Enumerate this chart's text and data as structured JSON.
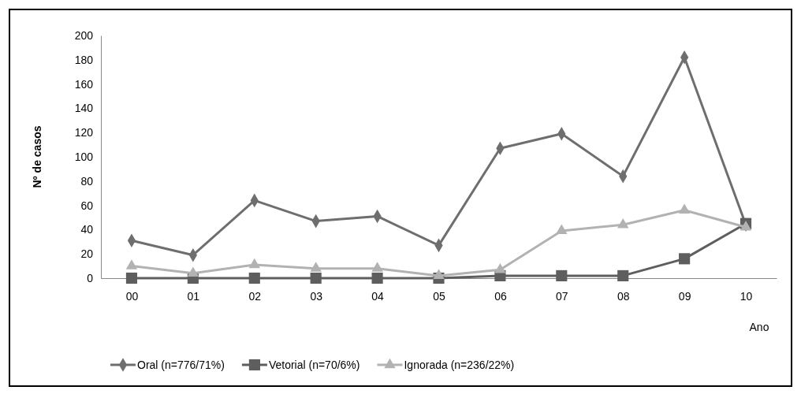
{
  "chart_data": {
    "type": "line",
    "xlabel": "Ano",
    "ylabel": "Nº de casos",
    "categories": [
      "00",
      "01",
      "02",
      "03",
      "04",
      "05",
      "06",
      "07",
      "08",
      "09",
      "10"
    ],
    "series": [
      {
        "name": "Oral (n=776/71%)",
        "color": "#6e6e6e",
        "marker": "diamond",
        "values": [
          31,
          19,
          64,
          47,
          51,
          27,
          107,
          119,
          84,
          182,
          44
        ]
      },
      {
        "name": "Vetorial (n=70/6%)",
        "color": "#5e5e5e",
        "marker": "square",
        "values": [
          0,
          0,
          0,
          0,
          0,
          0,
          2,
          2,
          2,
          16,
          45
        ]
      },
      {
        "name": "Ignorada (n=236/22%)",
        "color": "#b2b2b2",
        "marker": "triangle",
        "values": [
          10,
          4,
          11,
          8,
          8,
          2,
          7,
          39,
          44,
          56,
          42
        ]
      }
    ],
    "ylim": [
      0,
      200
    ],
    "yticks": [
      0,
      20,
      40,
      60,
      80,
      100,
      120,
      140,
      160,
      180,
      200
    ],
    "grid": false,
    "legend": "bottom"
  }
}
